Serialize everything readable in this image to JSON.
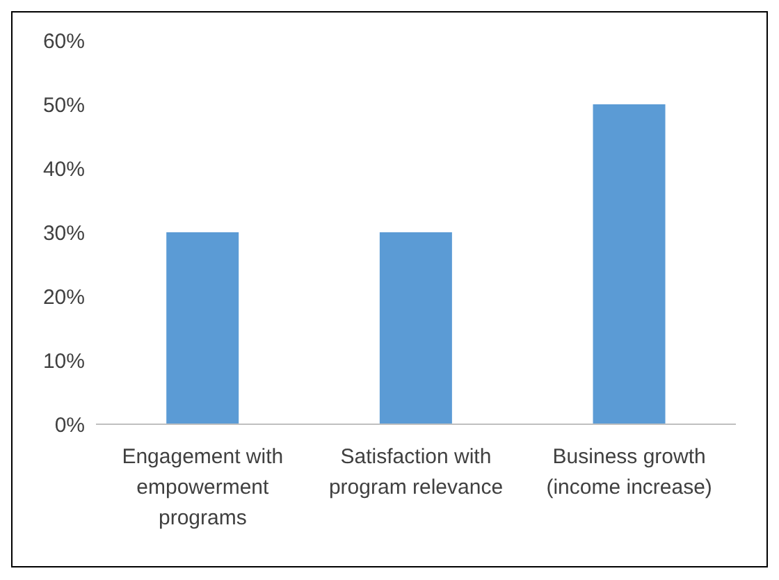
{
  "chart_data": {
    "type": "bar",
    "categories": [
      "Engagement with empowerment programs",
      "Satisfaction with program relevance",
      "Business growth (income increase)"
    ],
    "values": [
      30,
      30,
      50
    ],
    "color": "#5b9bd5",
    "ylim": [
      0,
      60
    ],
    "yticks": [
      {
        "value": 0,
        "label": "0%"
      },
      {
        "value": 10,
        "label": "10%"
      },
      {
        "value": 20,
        "label": "20%"
      },
      {
        "value": 30,
        "label": "30%"
      },
      {
        "value": 40,
        "label": "40%"
      },
      {
        "value": 50,
        "label": "50%"
      },
      {
        "value": 60,
        "label": "60%"
      }
    ],
    "grid": false
  }
}
